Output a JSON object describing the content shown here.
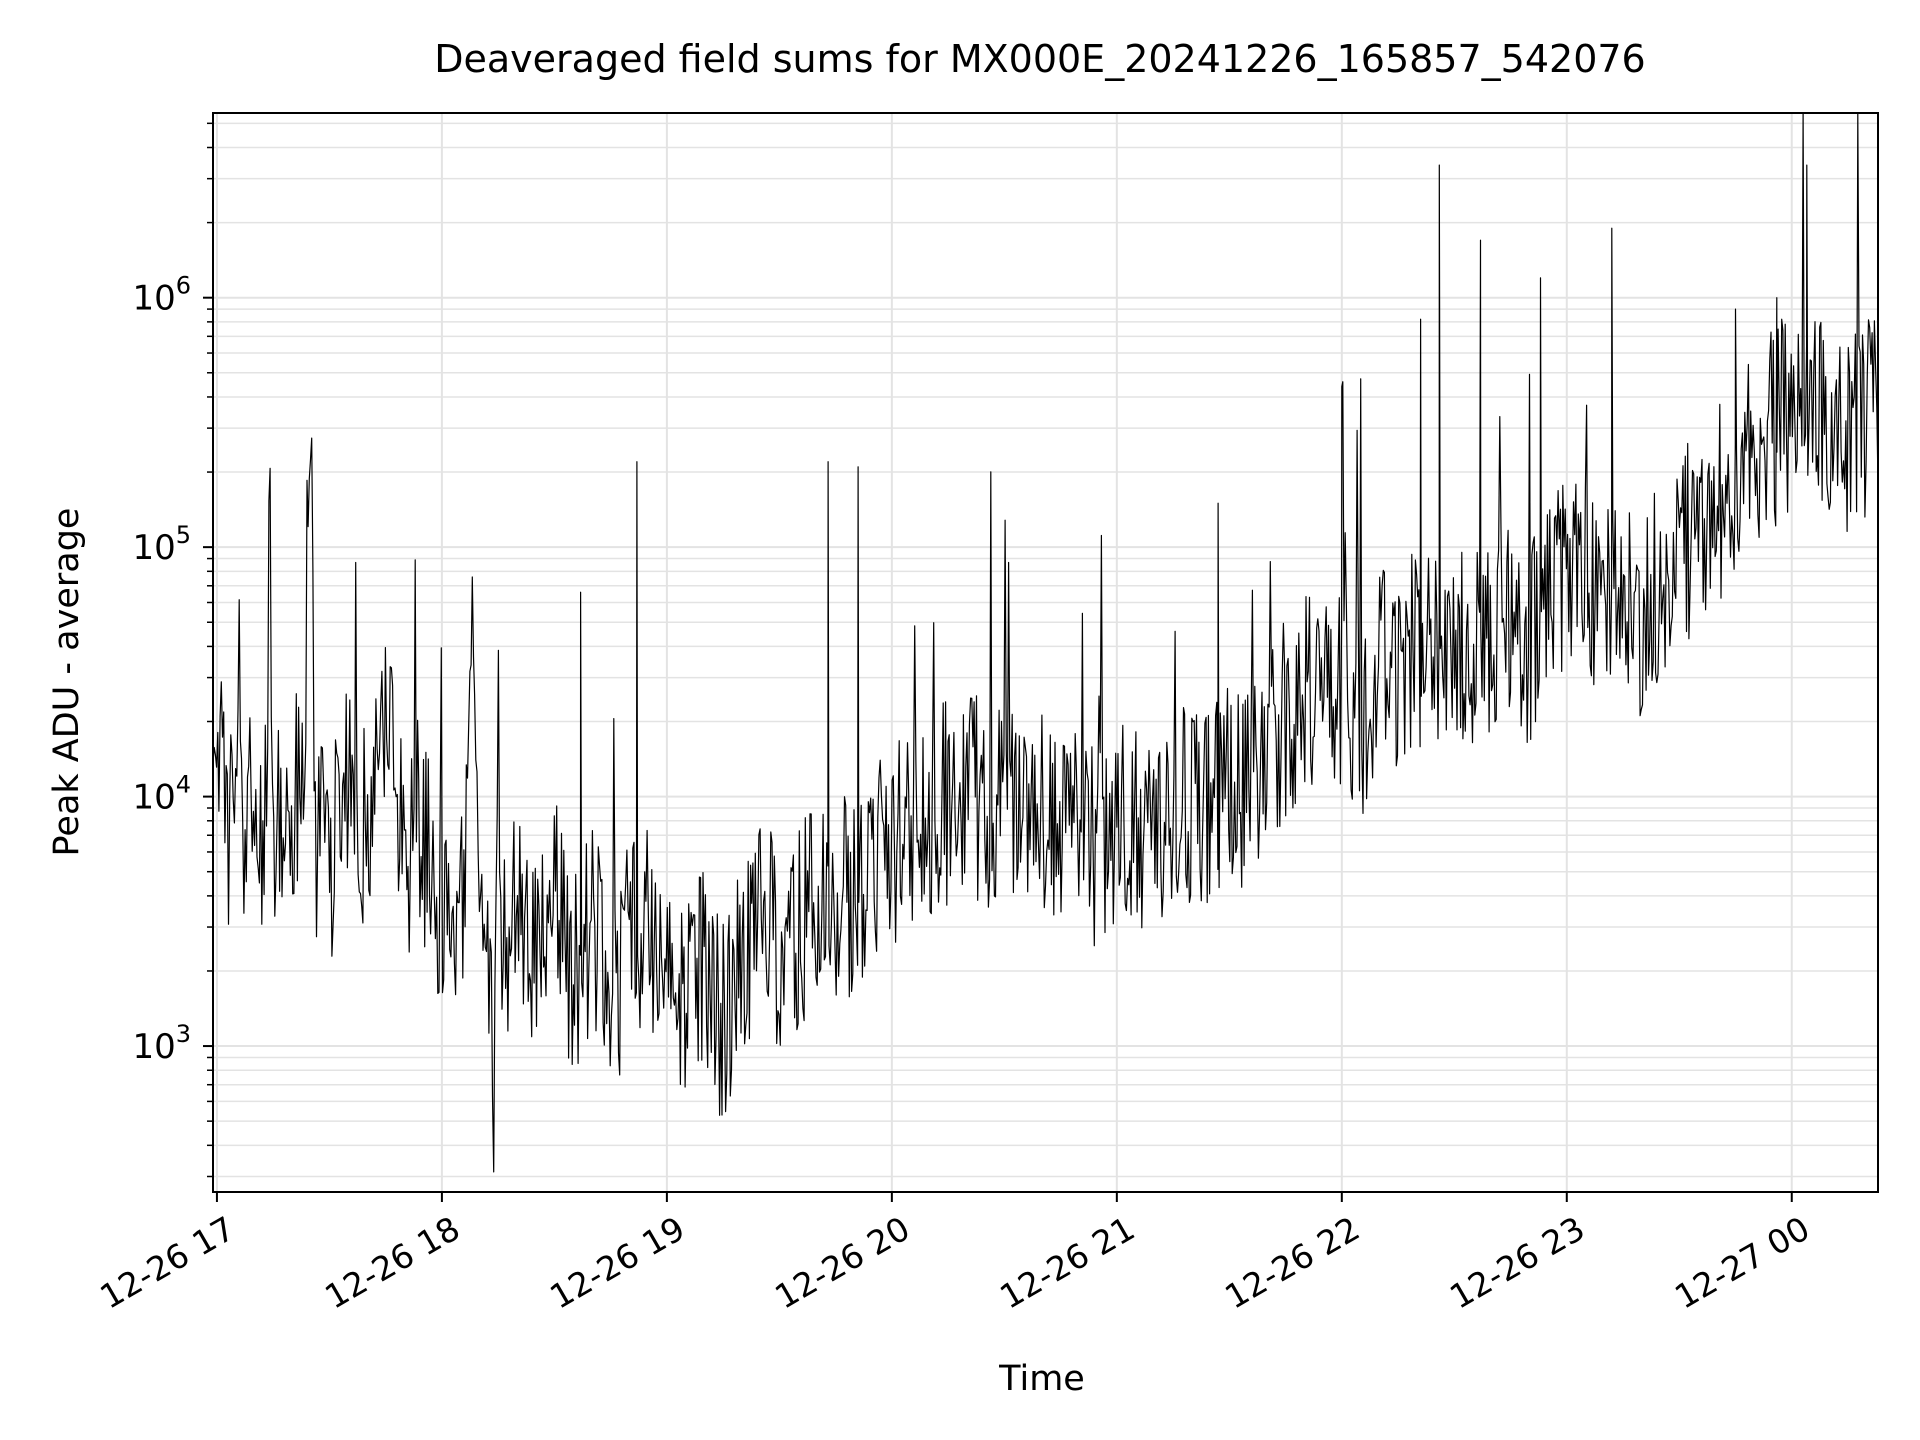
{
  "chart_data": {
    "type": "line",
    "title": "Deaveraged field sums for MX000E_20241226_165857_542076",
    "xlabel": "Time",
    "ylabel": "Peak ADU - average",
    "yscale": "log",
    "ylim": [
      260,
      5500000
    ],
    "xlim": [
      "2024-12-26 16:58:57",
      "2024-12-27 00:23:00"
    ],
    "x_tick_labels": [
      "12-26 17",
      "12-26 18",
      "12-26 19",
      "12-26 20",
      "12-26 21",
      "12-26 22",
      "12-26 23",
      "12-27 00"
    ],
    "y_tick_labels": [
      "10^3",
      "10^4",
      "10^5",
      "10^6"
    ],
    "grid": true,
    "series": [
      {
        "color": "#000000",
        "points": [
          [
            "2024-12-26 16:58:57",
            8000
          ],
          [
            "2024-12-26 17:00:00",
            20000
          ],
          [
            "2024-12-26 17:03:00",
            6000
          ],
          [
            "2024-12-26 17:05:00",
            12000
          ],
          [
            "2024-12-26 17:07:00",
            5000
          ],
          [
            "2024-12-26 17:09:00",
            9000
          ],
          [
            "2024-12-26 17:11:00",
            6000
          ],
          [
            "2024-12-26 17:13:00",
            10000
          ],
          [
            "2024-12-26 17:14:00",
            140000
          ],
          [
            "2024-12-26 17:15:00",
            5000
          ],
          [
            "2024-12-26 17:17:00",
            8000
          ],
          [
            "2024-12-26 17:19:00",
            6000
          ],
          [
            "2024-12-26 17:21:00",
            12000
          ],
          [
            "2024-12-26 17:23:00",
            7000
          ],
          [
            "2024-12-26 17:24:00",
            90000
          ],
          [
            "2024-12-26 17:25:00",
            360000
          ],
          [
            "2024-12-26 17:26:00",
            6000
          ],
          [
            "2024-12-26 17:28:00",
            8000
          ],
          [
            "2024-12-26 17:30:00",
            5000
          ],
          [
            "2024-12-26 17:33:00",
            10000
          ],
          [
            "2024-12-26 17:36:00",
            15000
          ],
          [
            "2024-12-26 17:39:00",
            7000
          ],
          [
            "2024-12-26 17:42:00",
            12000
          ],
          [
            "2024-12-26 17:45:00",
            20000
          ],
          [
            "2024-12-26 17:48:00",
            12000
          ],
          [
            "2024-12-26 17:51:00",
            6000
          ],
          [
            "2024-12-26 17:54:00",
            8000
          ],
          [
            "2024-12-26 17:57:00",
            5000
          ],
          [
            "2024-12-26 18:00:00",
            3500
          ],
          [
            "2024-12-26 18:03:00",
            2500
          ],
          [
            "2024-12-26 18:06:00",
            4000
          ],
          [
            "2024-12-26 18:08:00",
            65000
          ],
          [
            "2024-12-26 18:10:00",
            4000
          ],
          [
            "2024-12-26 18:12:00",
            2000
          ],
          [
            "2024-12-26 18:14:00",
            700
          ],
          [
            "2024-12-26 18:15:00",
            31000
          ],
          [
            "2024-12-26 18:16:00",
            2500
          ],
          [
            "2024-12-26 18:20:00",
            3500
          ],
          [
            "2024-12-26 18:25:00",
            2500
          ],
          [
            "2024-12-26 18:30:00",
            4000
          ],
          [
            "2024-12-26 18:35:00",
            2000
          ],
          [
            "2024-12-26 18:40:00",
            3000
          ],
          [
            "2024-12-26 18:45:00",
            1500
          ],
          [
            "2024-12-26 18:50:00",
            2500
          ],
          [
            "2024-12-26 18:55:00",
            3000
          ],
          [
            "2024-12-26 18:58:00",
            2000
          ],
          [
            "2024-12-26 19:00:00",
            2500
          ],
          [
            "2024-12-26 19:05:00",
            1500
          ],
          [
            "2024-12-26 19:10:00",
            2000
          ],
          [
            "2024-12-26 19:15:00",
            1200
          ],
          [
            "2024-12-26 19:20:00",
            2000
          ],
          [
            "2024-12-26 19:25:00",
            3000
          ],
          [
            "2024-12-26 19:30:00",
            2500
          ],
          [
            "2024-12-26 19:35:00",
            3000
          ],
          [
            "2024-12-26 19:40:00",
            4000
          ],
          [
            "2024-12-26 19:44:00",
            3000
          ],
          [
            "2024-12-26 19:50:00",
            4500
          ],
          [
            "2024-12-26 19:55:00",
            5000
          ],
          [
            "2024-12-26 20:00:00",
            6000
          ],
          [
            "2024-12-26 20:05:00",
            8000
          ],
          [
            "2024-12-26 20:10:00",
            7000
          ],
          [
            "2024-12-26 20:15:00",
            10000
          ],
          [
            "2024-12-26 20:20:00",
            12000
          ],
          [
            "2024-12-26 20:25:00",
            9000
          ],
          [
            "2024-12-26 20:30:00",
            11000
          ],
          [
            "2024-12-26 20:35:00",
            8000
          ],
          [
            "2024-12-26 20:40:00",
            10000
          ],
          [
            "2024-12-26 20:45:00",
            7000
          ],
          [
            "2024-12-26 20:50:00",
            9000
          ],
          [
            "2024-12-26 20:55:00",
            6000
          ],
          [
            "2024-12-26 21:00:00",
            8000
          ],
          [
            "2024-12-26 21:05:00",
            7000
          ],
          [
            "2024-12-26 21:10:00",
            9000
          ],
          [
            "2024-12-26 21:15:00",
            8000
          ],
          [
            "2024-12-26 21:20:00",
            10000
          ],
          [
            "2024-12-26 21:25:00",
            8000
          ],
          [
            "2024-12-26 21:30:00",
            12000
          ],
          [
            "2024-12-26 21:35:00",
            10000
          ],
          [
            "2024-12-26 21:40:00",
            15000
          ],
          [
            "2024-12-26 21:45:00",
            20000
          ],
          [
            "2024-12-26 21:50:00",
            25000
          ],
          [
            "2024-12-26 21:55:00",
            30000
          ],
          [
            "2024-12-26 22:00:00",
            25000
          ],
          [
            "2024-12-26 22:05:00",
            20000
          ],
          [
            "2024-12-26 22:10:00",
            35000
          ],
          [
            "2024-12-26 22:15:00",
            30000
          ],
          [
            "2024-12-26 22:20:00",
            40000
          ],
          [
            "2024-12-26 22:25:00",
            35000
          ],
          [
            "2024-12-26 22:30:00",
            50000
          ],
          [
            "2024-12-26 22:35:00",
            40000
          ],
          [
            "2024-12-26 22:40:00",
            45000
          ],
          [
            "2024-12-26 22:45:00",
            50000
          ],
          [
            "2024-12-26 22:50:00",
            40000
          ],
          [
            "2024-12-26 22:55:00",
            60000
          ],
          [
            "2024-12-26 23:00:00",
            80000
          ],
          [
            "2024-12-26 23:05:00",
            70000
          ],
          [
            "2024-12-26 23:10:00",
            60000
          ],
          [
            "2024-12-26 23:15:00",
            70000
          ],
          [
            "2024-12-26 23:20:00",
            50000
          ],
          [
            "2024-12-26 23:25:00",
            80000
          ],
          [
            "2024-12-26 23:30:00",
            100000
          ],
          [
            "2024-12-26 23:35:00",
            120000
          ],
          [
            "2024-12-26 23:40:00",
            150000
          ],
          [
            "2024-12-26 23:45:00",
            200000
          ],
          [
            "2024-12-26 23:50:00",
            250000
          ],
          [
            "2024-12-26 23:55:00",
            300000
          ],
          [
            "2024-12-27 00:00:00",
            350000
          ],
          [
            "2024-12-27 00:05:00",
            300000
          ],
          [
            "2024-12-27 00:10:00",
            350000
          ],
          [
            "2024-12-27 00:15:00",
            300000
          ],
          [
            "2024-12-27 00:20:00",
            350000
          ],
          [
            "2024-12-27 00:23:00",
            300000
          ]
        ],
        "spikes": [
          [
            "2024-12-26 18:52:00",
            220000
          ],
          [
            "2024-12-26 19:43:00",
            220000
          ],
          [
            "2024-12-26 19:51:00",
            210000
          ],
          [
            "2024-12-26 18:37:00",
            66000
          ],
          [
            "2024-12-26 21:27:00",
            150000
          ],
          [
            "2024-12-26 22:00:00",
            440000
          ],
          [
            "2024-12-26 22:21:00",
            820000
          ],
          [
            "2024-12-26 22:26:00",
            3400000
          ],
          [
            "2024-12-26 22:37:00",
            1700000
          ],
          [
            "2024-12-26 22:53:00",
            1200000
          ],
          [
            "2024-12-26 23:12:00",
            1900000
          ],
          [
            "2024-12-26 23:45:00",
            900000
          ],
          [
            "2024-12-26 23:56:00",
            1000000
          ],
          [
            "2024-12-27 00:04:00",
            3400000
          ]
        ]
      }
    ]
  }
}
